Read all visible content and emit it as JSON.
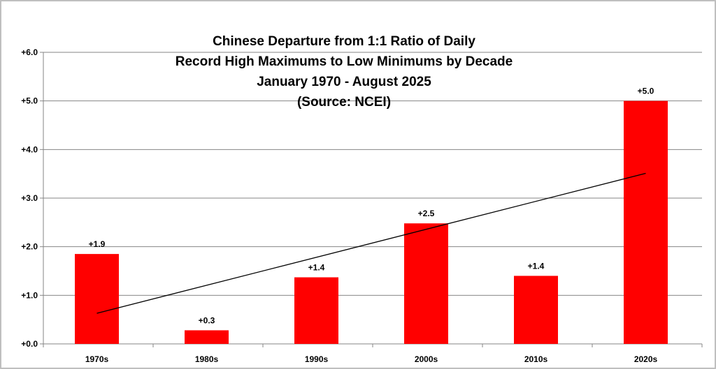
{
  "chart_data": {
    "type": "bar",
    "title_lines": [
      "Chinese Departure from 1:1 Ratio of Daily",
      "Record High Maximums to Low Minimums by Decade",
      "January 1970 - August 2025",
      "(Source: NCEI)"
    ],
    "categories": [
      "1970s",
      "1980s",
      "1990s",
      "2000s",
      "2010s",
      "2020s"
    ],
    "values": [
      1.85,
      0.28,
      1.37,
      2.48,
      1.4,
      5.0
    ],
    "data_labels": [
      "+1.9",
      "+0.3",
      "+1.4",
      "+2.5",
      "+1.4",
      "+5.0"
    ],
    "ylim": [
      0,
      6
    ],
    "yticks": [
      0,
      1,
      2,
      3,
      4,
      5,
      6
    ],
    "ytick_labels": [
      "+0.0",
      "+1.0",
      "+2.0",
      "+3.0",
      "+4.0",
      "+5.0",
      "+6.0"
    ],
    "trendline": {
      "start": 0.63,
      "end": 3.51
    },
    "bar_color": "#ff0000",
    "trend_color": "#000000",
    "grid": true,
    "legend": "none"
  }
}
